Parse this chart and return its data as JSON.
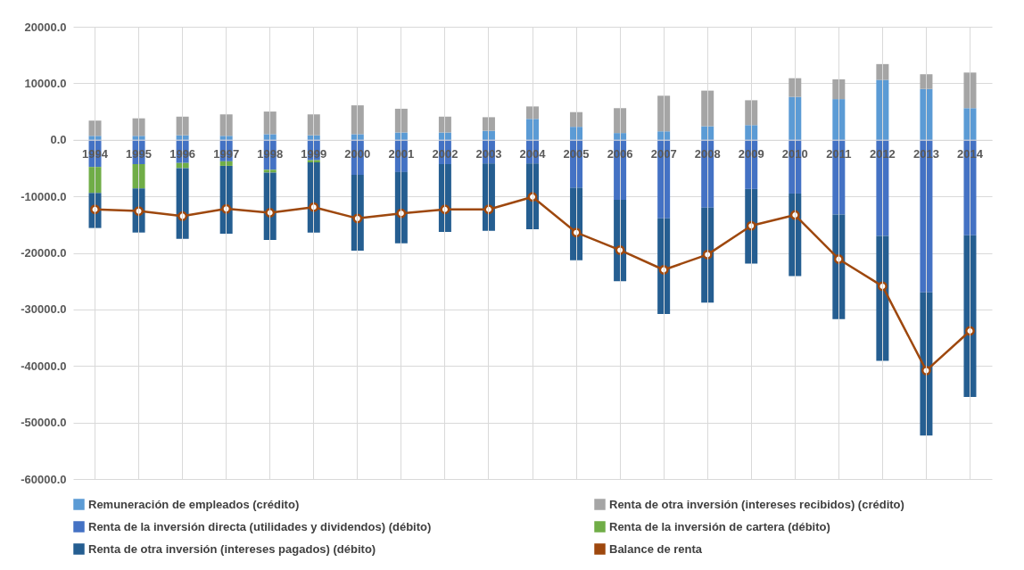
{
  "chart_data": {
    "type": "bar",
    "stacked": true,
    "categories": [
      "1994",
      "1995",
      "1996",
      "1997",
      "1998",
      "1999",
      "2000",
      "2001",
      "2002",
      "2003",
      "2004",
      "2005",
      "2006",
      "2007",
      "2008",
      "2009",
      "2010",
      "2011",
      "2012",
      "2013",
      "2014"
    ],
    "series": [
      {
        "name": "Remuneración de empleados (crédito)",
        "color": "#5b9bd5",
        "values": [
          700,
          700,
          800,
          700,
          1000,
          800,
          1000,
          1300,
          1300,
          1600,
          3700,
          2300,
          1200,
          1500,
          2400,
          2600,
          7600,
          7200,
          10600,
          9000,
          5600
        ]
      },
      {
        "name": "Renta de otra inversión (intereses recibidos) (crédito)",
        "color": "#a5a5a5",
        "values": [
          2700,
          3100,
          3300,
          3800,
          4000,
          3700,
          5100,
          4200,
          2800,
          2400,
          2200,
          2600,
          4400,
          6300,
          6300,
          4400,
          3300,
          3500,
          2800,
          2600,
          6300
        ]
      },
      {
        "name": "Renta de la inversión directa (utilidades y dividendos) (débito)",
        "color": "#4472c4",
        "values": [
          -4800,
          -4300,
          -4100,
          -3800,
          -5300,
          -3600,
          -6200,
          -5700,
          -4300,
          -4200,
          -4200,
          -8500,
          -10600,
          -13900,
          -12000,
          -8700,
          -9500,
          -13200,
          -17000,
          -27000,
          -16900
        ]
      },
      {
        "name": "Renta de la inversión de cartera (débito)",
        "color": "#70ad47",
        "values": [
          -4600,
          -4300,
          -900,
          -800,
          -500,
          -400,
          null,
          null,
          null,
          null,
          null,
          null,
          null,
          null,
          null,
          null,
          null,
          null,
          null,
          null,
          null
        ]
      },
      {
        "name": "Renta de otra inversión (intereses pagados) (débito)",
        "color": "#255e91",
        "values": [
          -6200,
          -7800,
          -12500,
          -12000,
          -11900,
          -12400,
          -13400,
          -12600,
          -12000,
          -11900,
          -11600,
          -12800,
          -14400,
          -16900,
          -16800,
          -13200,
          -14600,
          -18500,
          -22100,
          -25300,
          -28600
        ]
      },
      {
        "name": "Balance de renta",
        "type": "line",
        "marker": "circle",
        "color": "#9e480e",
        "values": [
          -12300,
          -12600,
          -13500,
          -12200,
          -12900,
          -11900,
          -13900,
          -13000,
          -12300,
          -12300,
          -10100,
          -16400,
          -19500,
          -23000,
          -20300,
          -15200,
          -13300,
          -21100,
          -25900,
          -40800,
          -33800
        ]
      }
    ],
    "ylim": [
      -60000,
      20000
    ],
    "yticks": [
      {
        "value": -60000,
        "label": "-60000.0"
      },
      {
        "value": -50000,
        "label": "-50000.0"
      },
      {
        "value": -40000,
        "label": "-40000.0"
      },
      {
        "value": -30000,
        "label": "-30000.0"
      },
      {
        "value": -20000,
        "label": "-20000.0"
      },
      {
        "value": -10000,
        "label": "-10000.0"
      },
      {
        "value": 0,
        "label": "0.0"
      },
      {
        "value": 10000,
        "label": "10000.0"
      },
      {
        "value": 20000,
        "label": "20000.0"
      }
    ],
    "grid": true,
    "legend": "bottom"
  }
}
